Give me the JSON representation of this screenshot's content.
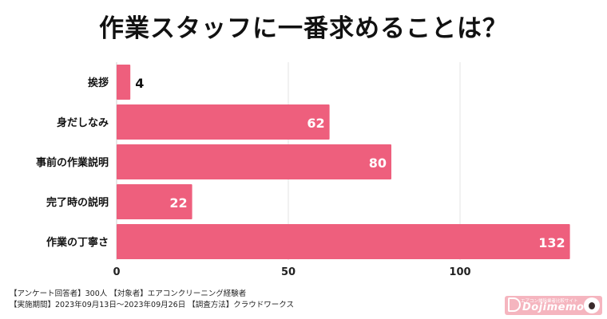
{
  "title": "作業スタッフに一番求めることは？",
  "chart_data": {
    "type": "bar",
    "orientation": "horizontal",
    "categories": [
      "挨拶",
      "身だしなみ",
      "事前の作業説明",
      "完了時の説明",
      "作業の丁寧さ"
    ],
    "values": [
      4,
      62,
      80,
      22,
      132
    ],
    "xticks": [
      0,
      50,
      100
    ],
    "xlim": [
      0,
      140
    ],
    "grid": true,
    "bar_color": "#ee5f7d"
  },
  "footer": {
    "line1": "【アンケート回答者】300人 【対象者】エアコンクリーニング経験者",
    "line2": "【実施期間】2023年09月13日～2023年09月26日 【調査方法】クラウドワークス"
  },
  "logo": {
    "subtitle": "エアコン掃除業者比較サイト",
    "text": "Dojimemo"
  }
}
